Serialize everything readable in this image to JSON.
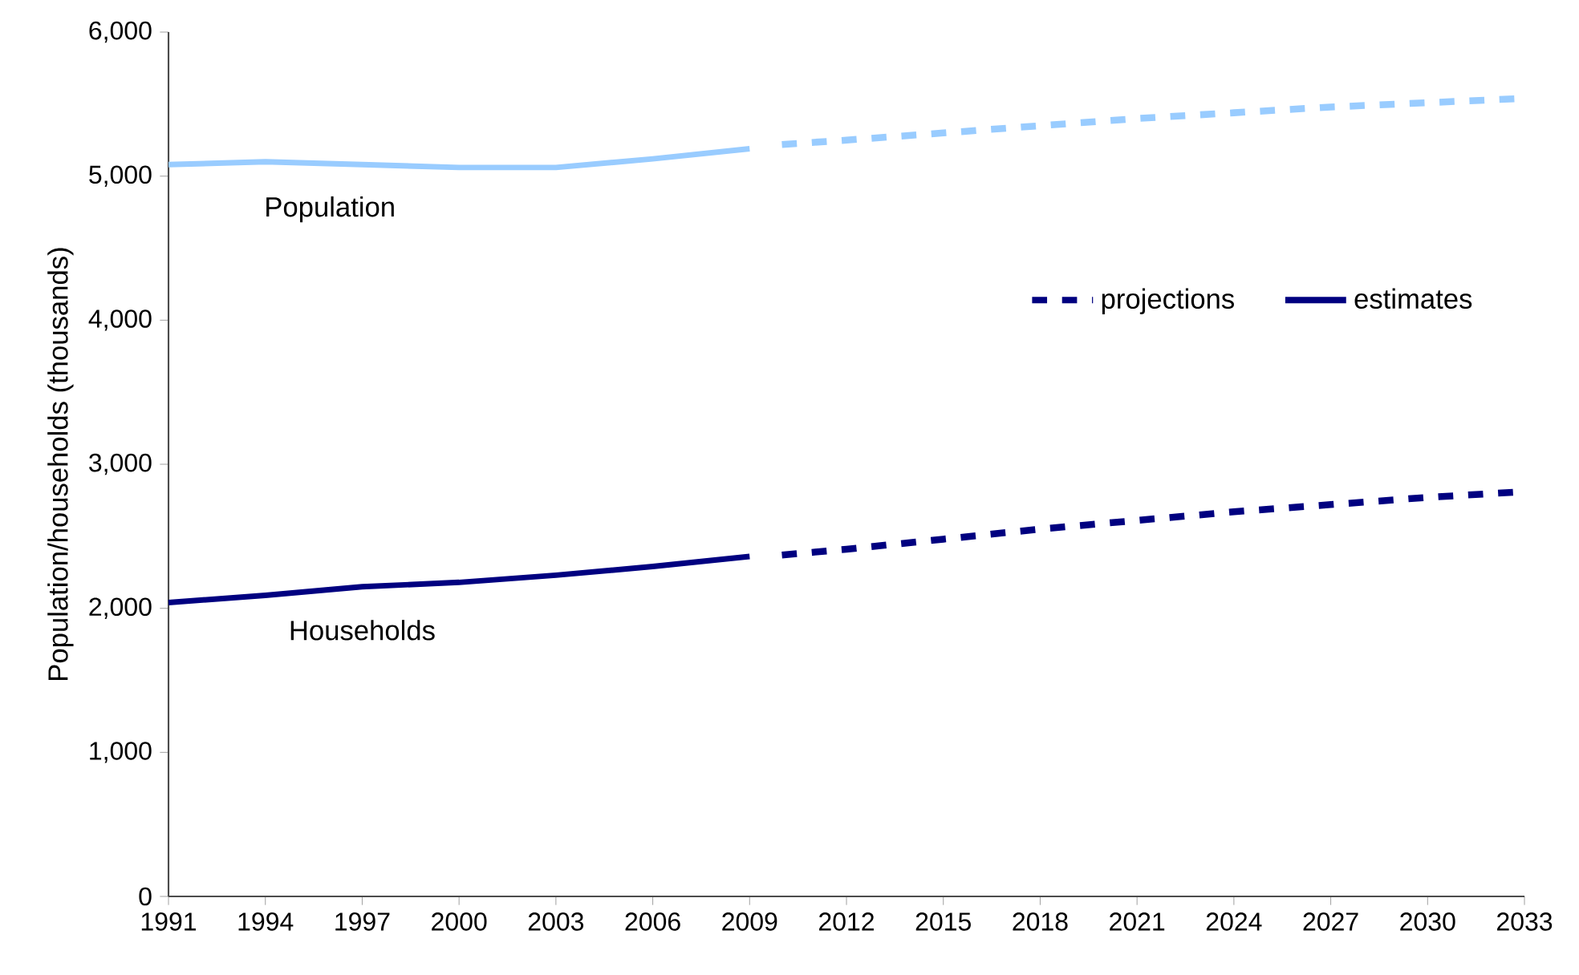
{
  "chart_data": {
    "type": "line",
    "ylabel": "Population/households (thousands)",
    "xlim": [
      1991,
      2033
    ],
    "xticks": [
      1991,
      1994,
      1997,
      2000,
      2003,
      2006,
      2009,
      2012,
      2015,
      2018,
      2021,
      2024,
      2027,
      2030,
      2033
    ],
    "ylim": [
      0,
      6000
    ],
    "yticks": [
      0,
      {
        "value": 1000,
        "label": "1,000"
      },
      {
        "value": 2000,
        "label": "2,000"
      },
      {
        "value": 3000,
        "label": "3,000"
      },
      {
        "value": 4000,
        "label": "4,000"
      },
      {
        "value": 5000,
        "label": "5,000"
      },
      {
        "value": 6000,
        "label": "6,000"
      }
    ],
    "series": [
      {
        "color": "#99ccff",
        "line_style": "solid",
        "x": [
          1991,
          1994,
          1997,
          2000,
          2003,
          2006,
          2009
        ],
        "values": [
          5080,
          5100,
          5080,
          5060,
          5060,
          5120,
          5190
        ]
      },
      {
        "color": "#99ccff",
        "line_style": "dashed",
        "x": [
          2010,
          2012,
          2015,
          2018,
          2021,
          2024,
          2027,
          2030,
          2033
        ],
        "values": [
          5220,
          5250,
          5300,
          5350,
          5400,
          5440,
          5480,
          5510,
          5540
        ]
      },
      {
        "name": "estimates",
        "color": "#000080",
        "line_style": "solid",
        "x": [
          1991,
          1994,
          1997,
          2000,
          2003,
          2006,
          2009
        ],
        "values": [
          2040,
          2090,
          2150,
          2180,
          2230,
          2290,
          2360
        ]
      },
      {
        "name": "projections",
        "color": "#000080",
        "line_style": "dashed",
        "x": [
          2010,
          2012,
          2015,
          2018,
          2021,
          2024,
          2027,
          2030,
          2033
        ],
        "values": [
          2370,
          2410,
          2480,
          2550,
          2610,
          2670,
          2720,
          2770,
          2810
        ]
      }
    ],
    "annotations": [
      {
        "text": "Population",
        "x": 1996,
        "y": 5090
      },
      {
        "text": "Households",
        "x": 1997,
        "y": 2150
      }
    ],
    "legend": "right",
    "grid": false,
    "marker": "none"
  }
}
